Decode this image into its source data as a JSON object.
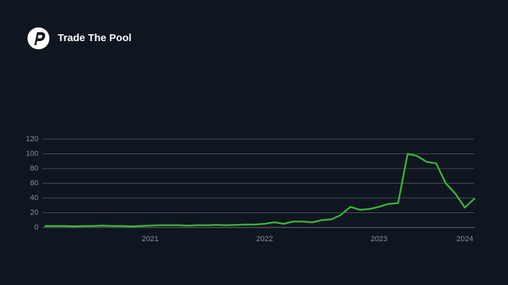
{
  "brand": "Trade The Pool",
  "chart_data": {
    "type": "line",
    "categories": [
      null,
      null,
      null,
      null,
      null,
      null,
      null,
      null,
      null,
      null,
      null,
      "2021",
      null,
      null,
      null,
      null,
      null,
      null,
      null,
      null,
      null,
      null,
      null,
      "2022",
      null,
      null,
      null,
      null,
      null,
      null,
      null,
      null,
      null,
      null,
      null,
      "2023",
      null,
      null,
      null,
      null,
      null,
      null,
      null,
      null,
      "2024",
      null
    ],
    "series": [
      {
        "color": "#3cb33c",
        "values": [
          2,
          2,
          2,
          1.5,
          2,
          2,
          2.5,
          2,
          2,
          1.5,
          2,
          2.5,
          3,
          3,
          3,
          2.5,
          3,
          3,
          3.5,
          3,
          3.5,
          4,
          4,
          5,
          7,
          5,
          8,
          8,
          7,
          10,
          11,
          17,
          28,
          24,
          25,
          28,
          32,
          33,
          100,
          97,
          89,
          87,
          60,
          46,
          27,
          39
        ]
      }
    ],
    "ylim": [
      0,
      120
    ],
    "yticks": [
      0,
      20,
      40,
      60,
      80,
      100,
      120
    ],
    "grid": true
  }
}
